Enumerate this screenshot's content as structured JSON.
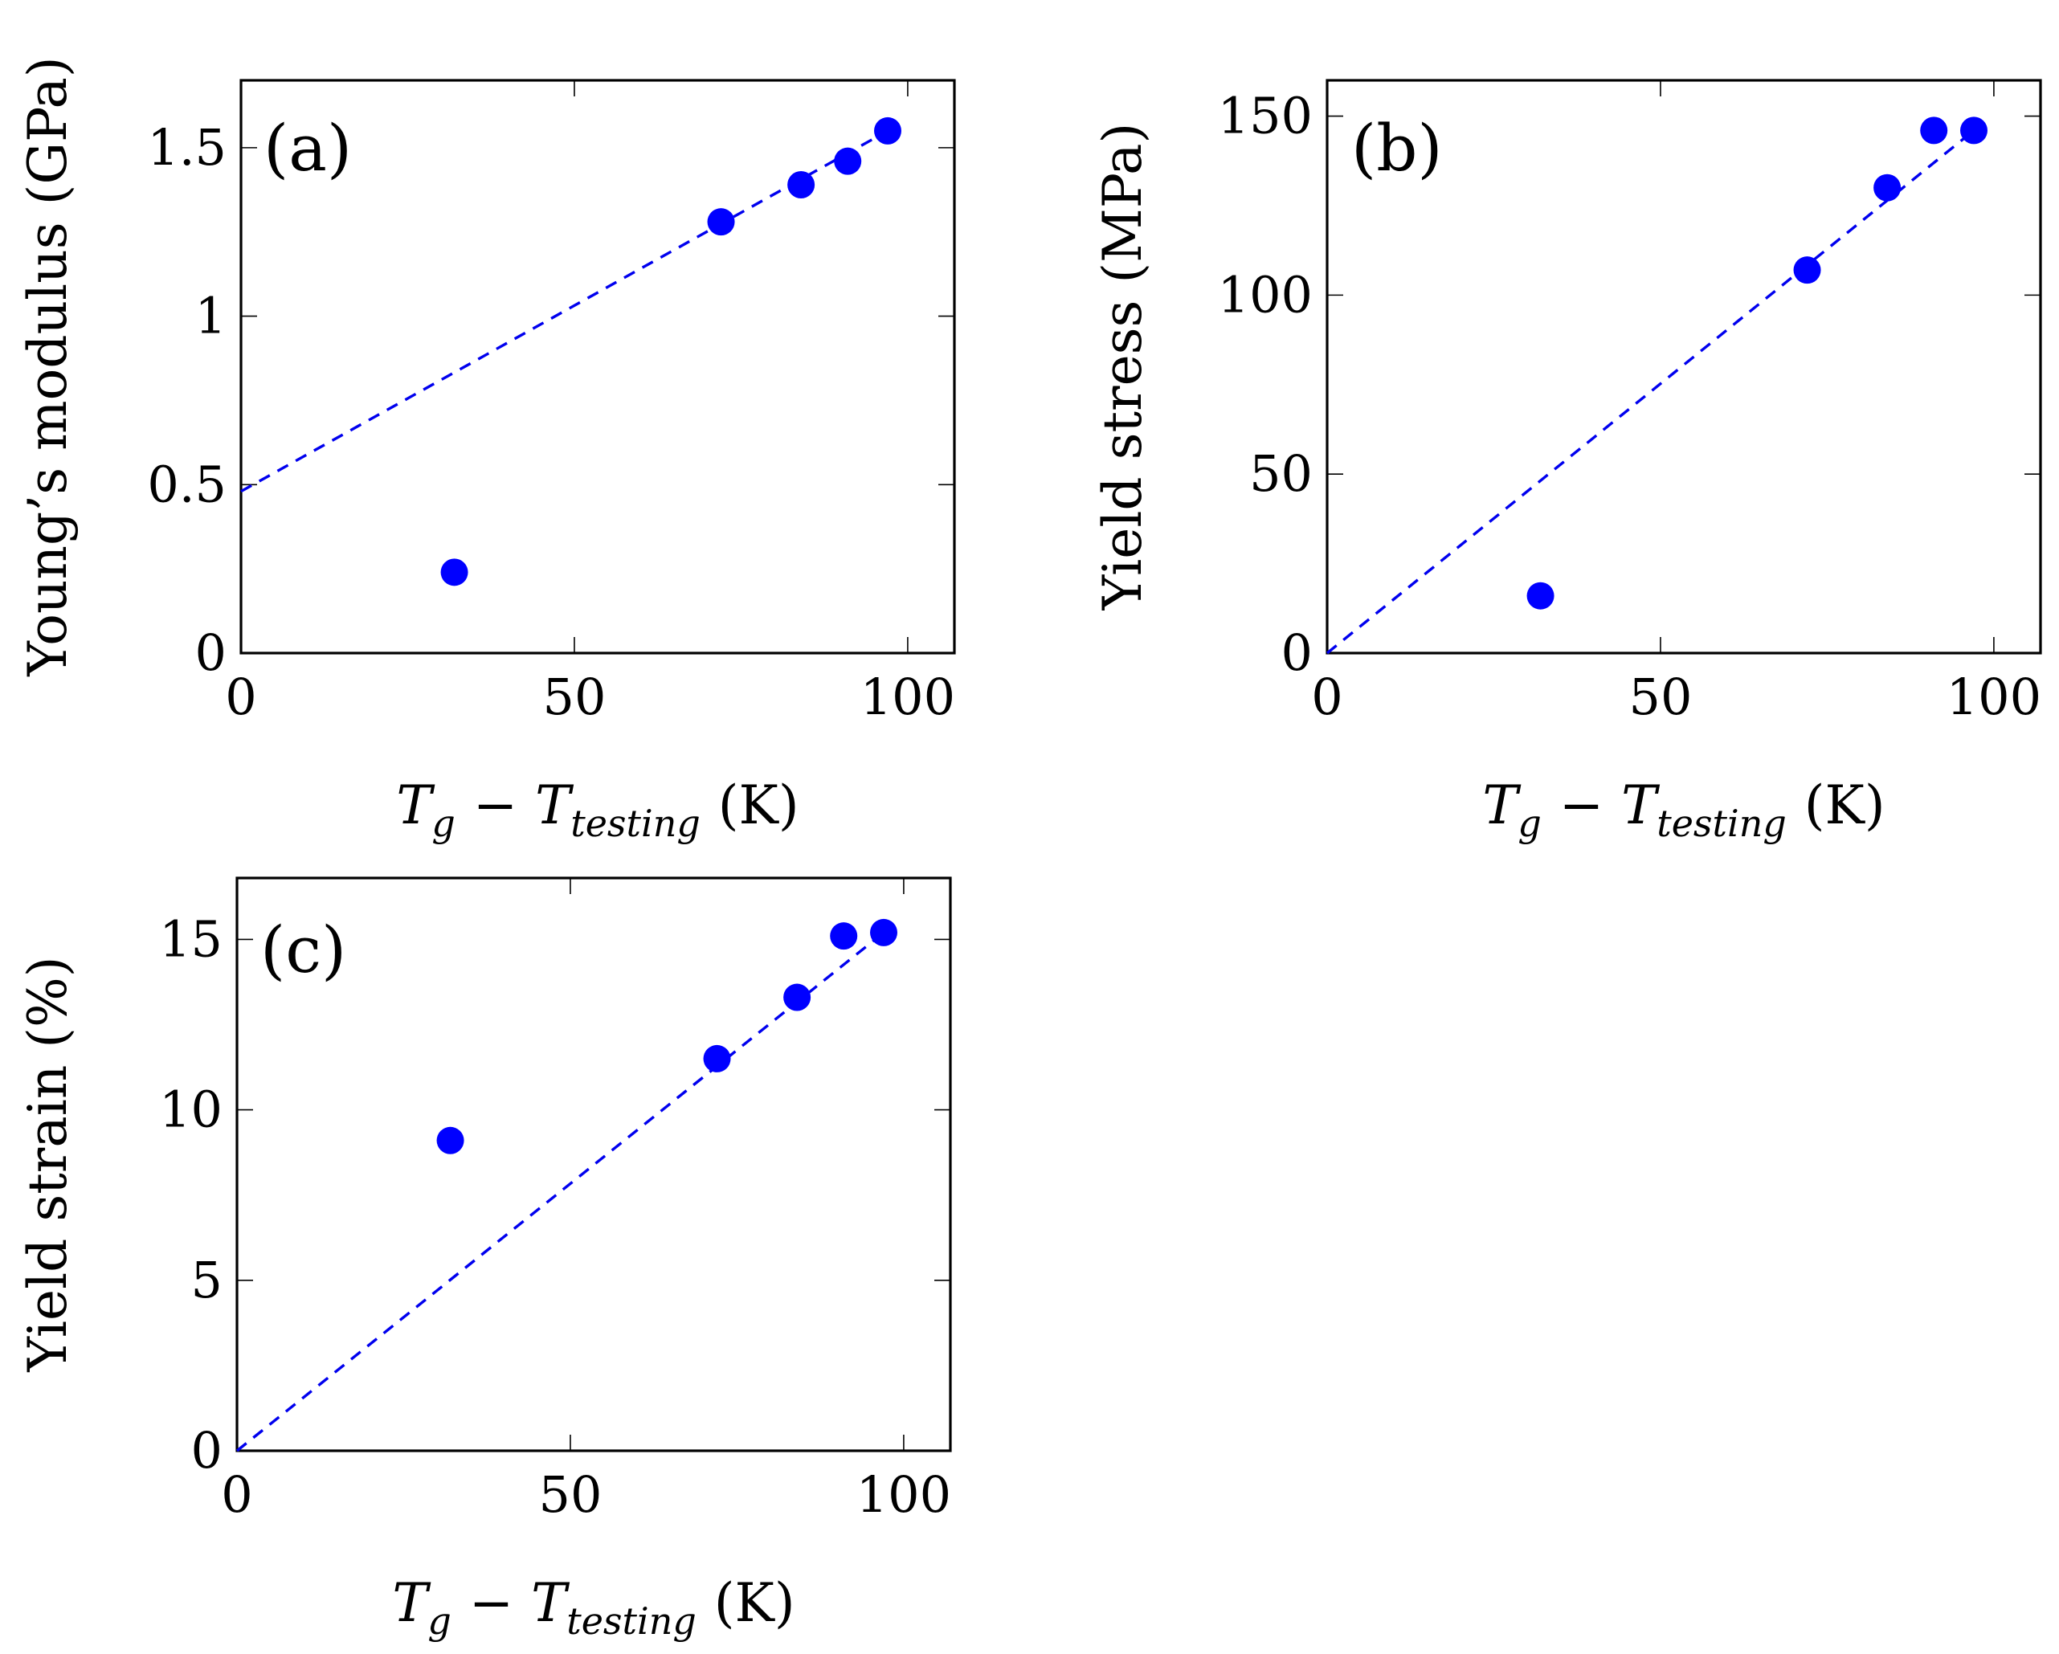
{
  "chart_data": [
    {
      "type": "scatter",
      "panel_label": "(a)",
      "xlabel": {
        "main": "T",
        "sub1": "g",
        "minus": "−",
        "main2": "T",
        "sub2": "testing",
        "unit": "(K)"
      },
      "ylabel": "Young’s modulus (GPa)",
      "xlim": [
        0,
        107
      ],
      "ylim": [
        0,
        1.7
      ],
      "xticks": [
        0,
        50,
        100
      ],
      "xtick_labels": [
        "0",
        "50",
        "100"
      ],
      "yticks": [
        0,
        0.5,
        1,
        1.5
      ],
      "ytick_labels": [
        "0",
        "0.5",
        "1",
        "1.5"
      ],
      "points": [
        {
          "x": 32,
          "y": 0.24
        },
        {
          "x": 72,
          "y": 1.28
        },
        {
          "x": 84,
          "y": 1.39
        },
        {
          "x": 91,
          "y": 1.46
        },
        {
          "x": 97,
          "y": 1.55
        }
      ],
      "fit_line": {
        "style": "dashed",
        "color": "#0000ee",
        "x": [
          0,
          97
        ],
        "y": [
          0.48,
          1.55
        ]
      },
      "point_color": "#0000ff"
    },
    {
      "type": "scatter",
      "panel_label": "(b)",
      "xlabel": {
        "main": "T",
        "sub1": "g",
        "minus": "−",
        "main2": "T",
        "sub2": "testing",
        "unit": "(K)"
      },
      "ylabel": "Yield stress (MPa)",
      "xlim": [
        0,
        107
      ],
      "ylim": [
        0,
        160
      ],
      "xticks": [
        0,
        50,
        100
      ],
      "xtick_labels": [
        "0",
        "50",
        "100"
      ],
      "yticks": [
        0,
        50,
        100,
        150
      ],
      "ytick_labels": [
        "0",
        "50",
        "100",
        "150"
      ],
      "points": [
        {
          "x": 32,
          "y": 16
        },
        {
          "x": 72,
          "y": 107
        },
        {
          "x": 84,
          "y": 130
        },
        {
          "x": 91,
          "y": 146
        },
        {
          "x": 97,
          "y": 146
        }
      ],
      "fit_line": {
        "style": "dashed",
        "color": "#0000ee",
        "x": [
          0,
          97
        ],
        "y": [
          0,
          146
        ]
      },
      "point_color": "#0000ff"
    },
    {
      "type": "scatter",
      "panel_label": "(c)",
      "xlabel": {
        "main": "T",
        "sub1": "g",
        "minus": "−",
        "main2": "T",
        "sub2": "testing",
        "unit": "(K)"
      },
      "ylabel": "Yield strain (%)",
      "xlim": [
        0,
        107
      ],
      "ylim": [
        0,
        16.8
      ],
      "xticks": [
        0,
        50,
        100
      ],
      "xtick_labels": [
        "0",
        "50",
        "100"
      ],
      "yticks": [
        0,
        5,
        10,
        15
      ],
      "ytick_labels": [
        "0",
        "5",
        "10",
        "15"
      ],
      "points": [
        {
          "x": 32,
          "y": 9.1
        },
        {
          "x": 72,
          "y": 11.5
        },
        {
          "x": 84,
          "y": 13.3
        },
        {
          "x": 91,
          "y": 15.1
        },
        {
          "x": 97,
          "y": 15.2
        }
      ],
      "fit_line": {
        "style": "dashed",
        "color": "#0000ee",
        "x": [
          0,
          97
        ],
        "y": [
          0,
          15.2
        ]
      },
      "point_color": "#0000ff"
    }
  ]
}
